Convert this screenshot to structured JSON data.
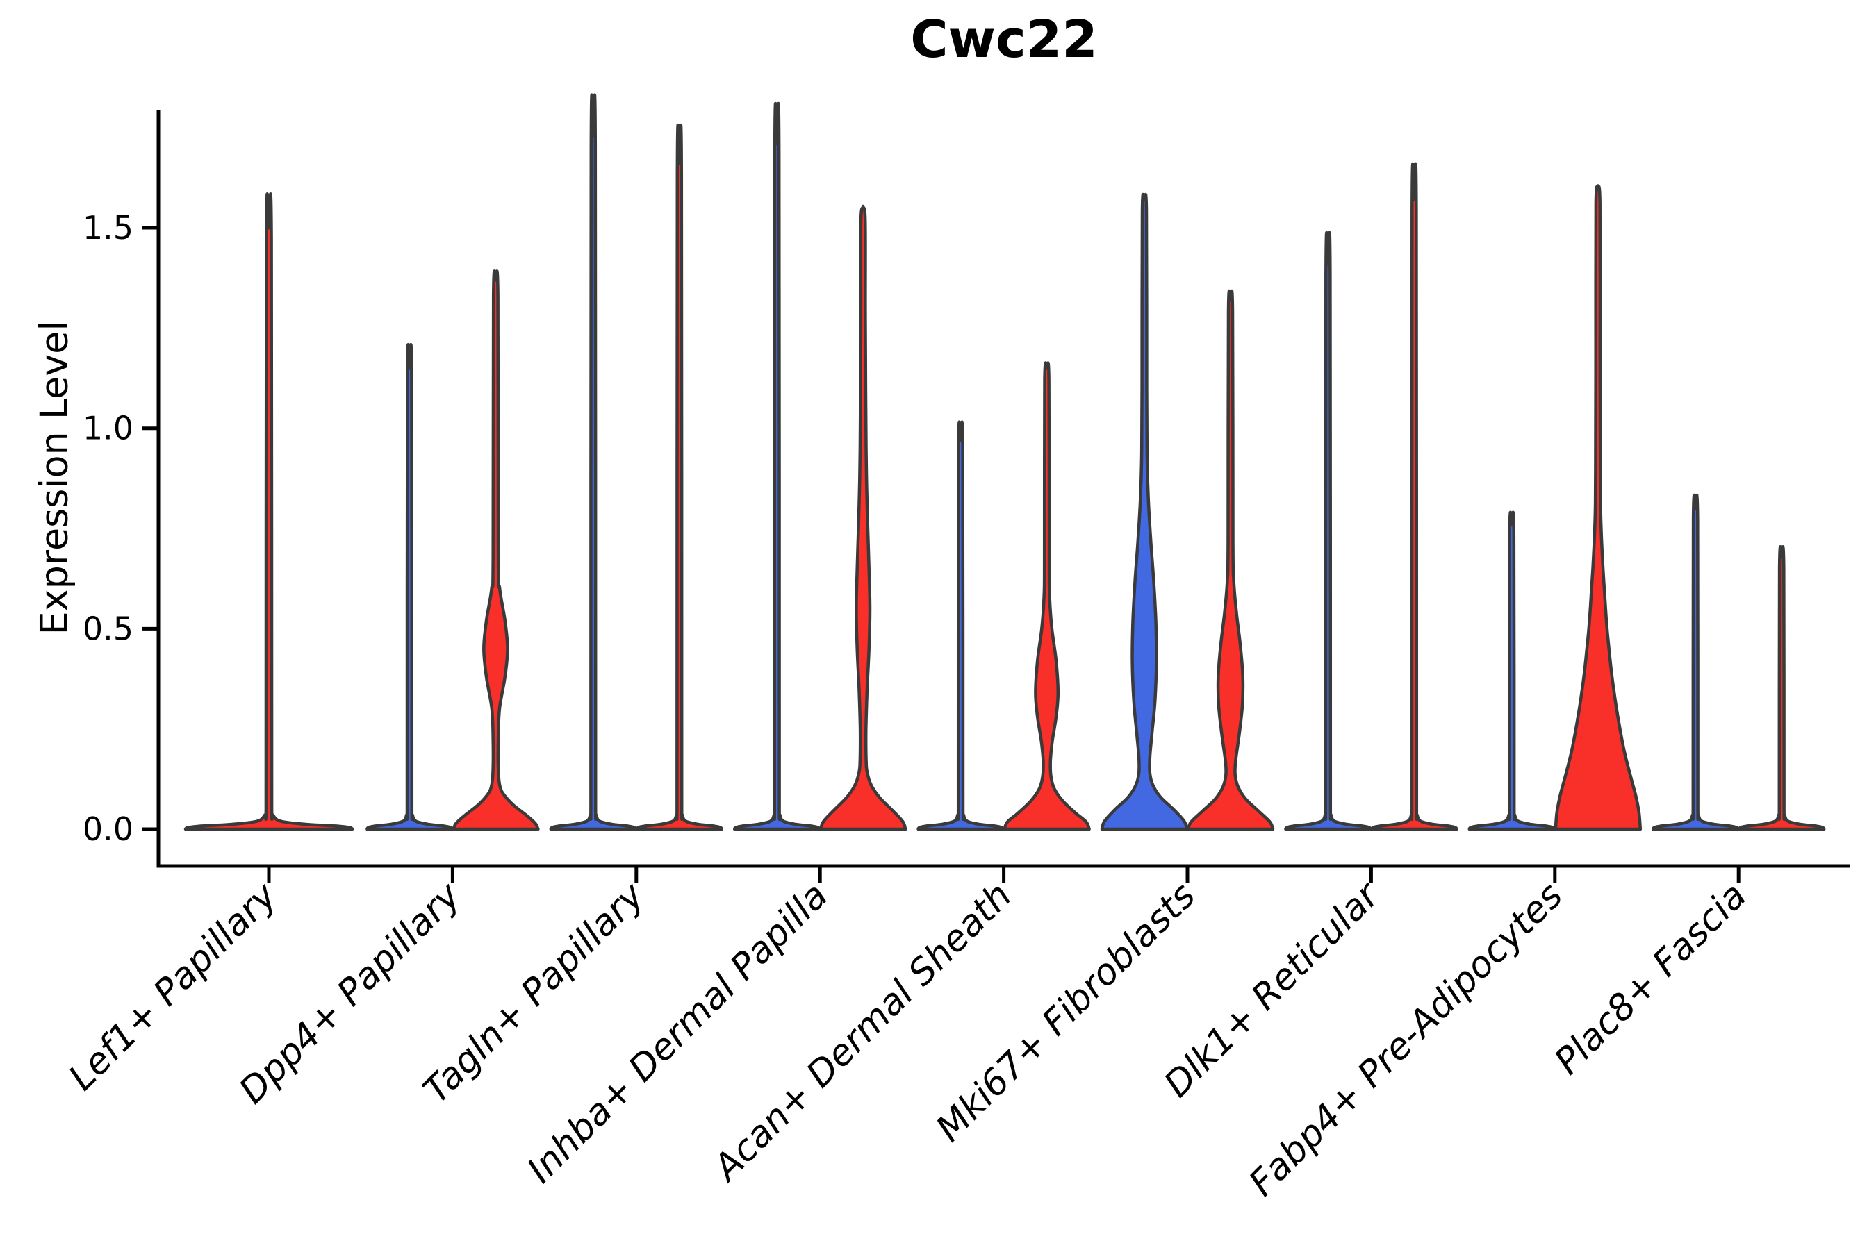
{
  "title": "Cwc22",
  "y_axis": {
    "label": "Expression Level",
    "tick_labels": [
      "0.0",
      "0.5",
      "1.0",
      "1.5"
    ],
    "ticks": [
      0.0,
      0.5,
      1.0,
      1.5
    ]
  },
  "x_axis": {
    "labels": [
      "Lef1+ Papillary",
      "Dpp4+ Papillary",
      "Tagln+ Papillary",
      "Inhba+ Dermal Papilla",
      "Acan+ Dermal Sheath",
      "Mki67+ Fibroblasts",
      "Dlk1+ Reticular",
      "Fabp4+ Pre-Adipocytes",
      "Plac8+ Fascia"
    ]
  },
  "colors": {
    "red": "#F93029",
    "blue": "#4369E2",
    "outline": "#3A3A3A",
    "axis": "#000000",
    "text": "#000000"
  },
  "chart_data": {
    "type": "violin",
    "title": "Cwc22",
    "ylabel": "Expression Level",
    "ylim": [
      0,
      1.79
    ],
    "yticks": [
      0.0,
      0.5,
      1.0,
      1.5
    ],
    "grid": false,
    "legend": "none",
    "categories": [
      "Lef1+ Papillary",
      "Dpp4+ Papillary",
      "Tagln+ Papillary",
      "Inhba+ Dermal Papilla",
      "Acan+ Dermal Sheath",
      "Mki67+ Fibroblasts",
      "Dlk1+ Reticular",
      "Fabp4+ Pre-Adipocytes",
      "Plac8+ Fascia"
    ],
    "violins": [
      {
        "category_index": 0,
        "category": "Lef1+ Papillary",
        "side": "single",
        "fill": "red",
        "max_expression": 1.5,
        "profile": [
          [
            0,
            1
          ],
          [
            0.004,
            0.97
          ],
          [
            0.008,
            0.8
          ],
          [
            0.012,
            0.45
          ],
          [
            0.02,
            0.14
          ],
          [
            0.035,
            0.05
          ],
          [
            0.05,
            0.034
          ],
          [
            1.47,
            0.03
          ],
          [
            1.5,
            0
          ]
        ]
      },
      {
        "category_index": 1,
        "category": "Dpp4+ Papillary",
        "side": "left",
        "fill": "blue",
        "max_expression": 1.15,
        "profile": [
          [
            0,
            1
          ],
          [
            0.004,
            0.97
          ],
          [
            0.008,
            0.8
          ],
          [
            0.012,
            0.45
          ],
          [
            0.02,
            0.15
          ],
          [
            0.035,
            0.07
          ],
          [
            0.05,
            0.055
          ],
          [
            1.12,
            0.05
          ],
          [
            1.15,
            0
          ]
        ]
      },
      {
        "category_index": 1,
        "category": "Dpp4+ Papillary",
        "side": "right",
        "fill": "red",
        "max_expression": 1.37,
        "profile": [
          [
            0,
            1
          ],
          [
            0.015,
            0.93
          ],
          [
            0.035,
            0.72
          ],
          [
            0.06,
            0.42
          ],
          [
            0.085,
            0.2
          ],
          [
            0.105,
            0.105
          ],
          [
            0.14,
            0.065
          ],
          [
            0.22,
            0.06
          ],
          [
            0.3,
            0.09
          ],
          [
            0.38,
            0.22
          ],
          [
            0.45,
            0.28
          ],
          [
            0.52,
            0.22
          ],
          [
            0.6,
            0.095
          ],
          [
            0.68,
            0.06
          ],
          [
            1.33,
            0.052
          ],
          [
            1.37,
            0
          ]
        ]
      },
      {
        "category_index": 2,
        "category": "Tagln+ Papillary",
        "side": "left",
        "fill": "blue",
        "max_expression": 1.73,
        "profile": [
          [
            0,
            1
          ],
          [
            0.004,
            0.97
          ],
          [
            0.008,
            0.8
          ],
          [
            0.012,
            0.45
          ],
          [
            0.02,
            0.15
          ],
          [
            0.035,
            0.07
          ],
          [
            0.05,
            0.055
          ],
          [
            1.7,
            0.05
          ],
          [
            1.73,
            0
          ]
        ]
      },
      {
        "category_index": 2,
        "category": "Tagln+ Papillary",
        "side": "right",
        "fill": "red",
        "max_expression": 1.66,
        "profile": [
          [
            0,
            1
          ],
          [
            0.004,
            0.97
          ],
          [
            0.008,
            0.8
          ],
          [
            0.012,
            0.45
          ],
          [
            0.02,
            0.15
          ],
          [
            0.035,
            0.07
          ],
          [
            0.05,
            0.055
          ],
          [
            1.63,
            0.05
          ],
          [
            1.66,
            0
          ]
        ]
      },
      {
        "category_index": 3,
        "category": "Inhba+ Dermal Papilla",
        "side": "left",
        "fill": "blue",
        "max_expression": 1.71,
        "profile": [
          [
            0,
            1
          ],
          [
            0.004,
            0.97
          ],
          [
            0.008,
            0.8
          ],
          [
            0.012,
            0.45
          ],
          [
            0.02,
            0.15
          ],
          [
            0.035,
            0.07
          ],
          [
            0.05,
            0.055
          ],
          [
            1.68,
            0.05
          ],
          [
            1.71,
            0
          ]
        ]
      },
      {
        "category_index": 3,
        "category": "Inhba+ Dermal Papilla",
        "side": "right",
        "fill": "red",
        "max_expression": 1.55,
        "profile": [
          [
            0,
            1
          ],
          [
            0.02,
            0.93
          ],
          [
            0.05,
            0.66
          ],
          [
            0.08,
            0.38
          ],
          [
            0.11,
            0.19
          ],
          [
            0.14,
            0.1
          ],
          [
            0.17,
            0.072
          ],
          [
            0.25,
            0.068
          ],
          [
            0.35,
            0.095
          ],
          [
            0.45,
            0.14
          ],
          [
            0.55,
            0.16
          ],
          [
            0.65,
            0.14
          ],
          [
            0.75,
            0.11
          ],
          [
            0.85,
            0.085
          ],
          [
            0.95,
            0.07
          ],
          [
            1.1,
            0.06
          ],
          [
            1.3,
            0.052
          ],
          [
            1.52,
            0.05
          ],
          [
            1.55,
            0
          ]
        ]
      },
      {
        "category_index": 4,
        "category": "Acan+ Dermal Sheath",
        "side": "left",
        "fill": "blue",
        "max_expression": 0.97,
        "profile": [
          [
            0,
            1
          ],
          [
            0.004,
            0.97
          ],
          [
            0.008,
            0.8
          ],
          [
            0.012,
            0.45
          ],
          [
            0.02,
            0.15
          ],
          [
            0.035,
            0.07
          ],
          [
            0.05,
            0.055
          ],
          [
            0.94,
            0.05
          ],
          [
            0.97,
            0
          ]
        ]
      },
      {
        "category_index": 4,
        "category": "Acan+ Dermal Sheath",
        "side": "right",
        "fill": "red",
        "max_expression": 1.15,
        "profile": [
          [
            0,
            1
          ],
          [
            0.018,
            0.93
          ],
          [
            0.04,
            0.68
          ],
          [
            0.07,
            0.38
          ],
          [
            0.1,
            0.18
          ],
          [
            0.13,
            0.1
          ],
          [
            0.17,
            0.085
          ],
          [
            0.22,
            0.13
          ],
          [
            0.28,
            0.22
          ],
          [
            0.34,
            0.265
          ],
          [
            0.42,
            0.22
          ],
          [
            0.5,
            0.12
          ],
          [
            0.58,
            0.065
          ],
          [
            0.68,
            0.055
          ],
          [
            1.12,
            0.05
          ],
          [
            1.15,
            0
          ]
        ]
      },
      {
        "category_index": 5,
        "category": "Mki67+ Fibroblasts",
        "side": "left",
        "fill": "blue",
        "max_expression": 1.57,
        "profile": [
          [
            0,
            1
          ],
          [
            0.02,
            0.94
          ],
          [
            0.05,
            0.68
          ],
          [
            0.08,
            0.38
          ],
          [
            0.11,
            0.2
          ],
          [
            0.14,
            0.13
          ],
          [
            0.18,
            0.13
          ],
          [
            0.24,
            0.18
          ],
          [
            0.32,
            0.25
          ],
          [
            0.42,
            0.285
          ],
          [
            0.52,
            0.27
          ],
          [
            0.62,
            0.22
          ],
          [
            0.72,
            0.15
          ],
          [
            0.82,
            0.095
          ],
          [
            0.92,
            0.065
          ],
          [
            1.1,
            0.055
          ],
          [
            1.54,
            0.05
          ],
          [
            1.57,
            0
          ]
        ]
      },
      {
        "category_index": 5,
        "category": "Mki67+ Fibroblasts",
        "side": "right",
        "fill": "red",
        "max_expression": 1.32,
        "profile": [
          [
            0,
            1
          ],
          [
            0.018,
            0.93
          ],
          [
            0.045,
            0.66
          ],
          [
            0.075,
            0.36
          ],
          [
            0.105,
            0.18
          ],
          [
            0.135,
            0.11
          ],
          [
            0.17,
            0.12
          ],
          [
            0.24,
            0.21
          ],
          [
            0.31,
            0.28
          ],
          [
            0.38,
            0.29
          ],
          [
            0.46,
            0.23
          ],
          [
            0.54,
            0.14
          ],
          [
            0.62,
            0.075
          ],
          [
            0.72,
            0.058
          ],
          [
            1.29,
            0.05
          ],
          [
            1.32,
            0
          ]
        ]
      },
      {
        "category_index": 6,
        "category": "Dlk1+ Reticular",
        "side": "left",
        "fill": "blue",
        "max_expression": 1.41,
        "profile": [
          [
            0,
            1
          ],
          [
            0.004,
            0.97
          ],
          [
            0.008,
            0.8
          ],
          [
            0.012,
            0.45
          ],
          [
            0.02,
            0.15
          ],
          [
            0.035,
            0.07
          ],
          [
            0.05,
            0.055
          ],
          [
            1.38,
            0.05
          ],
          [
            1.41,
            0
          ]
        ]
      },
      {
        "category_index": 6,
        "category": "Dlk1+ Reticular",
        "side": "right",
        "fill": "red",
        "max_expression": 1.57,
        "profile": [
          [
            0,
            1
          ],
          [
            0.004,
            0.97
          ],
          [
            0.008,
            0.8
          ],
          [
            0.012,
            0.45
          ],
          [
            0.02,
            0.15
          ],
          [
            0.035,
            0.07
          ],
          [
            0.05,
            0.055
          ],
          [
            1.54,
            0.05
          ],
          [
            1.57,
            0
          ]
        ]
      },
      {
        "category_index": 7,
        "category": "Fabp4+ Pre-Adipocytes",
        "side": "left",
        "fill": "blue",
        "max_expression": 0.76,
        "profile": [
          [
            0,
            1
          ],
          [
            0.004,
            0.97
          ],
          [
            0.008,
            0.8
          ],
          [
            0.012,
            0.45
          ],
          [
            0.02,
            0.15
          ],
          [
            0.035,
            0.07
          ],
          [
            0.05,
            0.055
          ],
          [
            0.73,
            0.05
          ],
          [
            0.76,
            0
          ]
        ]
      },
      {
        "category_index": 7,
        "category": "Fabp4+ Pre-Adipocytes",
        "side": "right",
        "fill": "red",
        "max_expression": 1.6,
        "profile": [
          [
            0,
            1
          ],
          [
            0.04,
            0.97
          ],
          [
            0.08,
            0.9
          ],
          [
            0.12,
            0.8
          ],
          [
            0.16,
            0.7
          ],
          [
            0.2,
            0.61
          ],
          [
            0.25,
            0.52
          ],
          [
            0.3,
            0.44
          ],
          [
            0.35,
            0.37
          ],
          [
            0.4,
            0.31
          ],
          [
            0.45,
            0.26
          ],
          [
            0.5,
            0.215
          ],
          [
            0.55,
            0.18
          ],
          [
            0.6,
            0.15
          ],
          [
            0.65,
            0.12
          ],
          [
            0.7,
            0.095
          ],
          [
            0.75,
            0.075
          ],
          [
            0.8,
            0.062
          ],
          [
            0.9,
            0.055
          ],
          [
            1.2,
            0.05
          ],
          [
            1.56,
            0.048
          ],
          [
            1.6,
            0
          ]
        ]
      },
      {
        "category_index": 8,
        "category": "Plac8+ Fascia",
        "side": "left",
        "fill": "blue",
        "max_expression": 0.8,
        "profile": [
          [
            0,
            1
          ],
          [
            0.004,
            0.97
          ],
          [
            0.008,
            0.8
          ],
          [
            0.012,
            0.45
          ],
          [
            0.02,
            0.15
          ],
          [
            0.035,
            0.07
          ],
          [
            0.05,
            0.055
          ],
          [
            0.77,
            0.05
          ],
          [
            0.8,
            0
          ]
        ]
      },
      {
        "category_index": 8,
        "category": "Plac8+ Fascia",
        "side": "right",
        "fill": "red",
        "max_expression": 0.68,
        "profile": [
          [
            0,
            1
          ],
          [
            0.004,
            0.97
          ],
          [
            0.008,
            0.8
          ],
          [
            0.012,
            0.45
          ],
          [
            0.02,
            0.15
          ],
          [
            0.035,
            0.07
          ],
          [
            0.05,
            0.055
          ],
          [
            0.65,
            0.05
          ],
          [
            0.68,
            0
          ]
        ]
      }
    ]
  }
}
